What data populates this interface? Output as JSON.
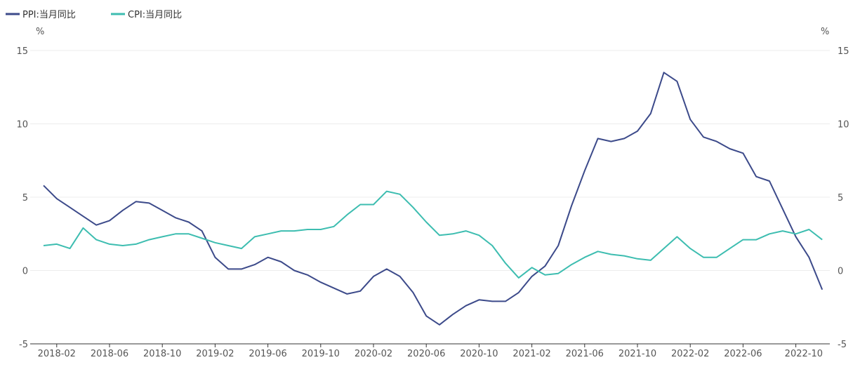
{
  "chart_data": {
    "type": "line",
    "unit_left": "%",
    "unit_right": "%",
    "ylim": [
      -5,
      15
    ],
    "yticks": [
      -5,
      0,
      5,
      10,
      15
    ],
    "x_labels": [
      "2018-02",
      "2018-06",
      "2018-10",
      "2019-02",
      "2019-06",
      "2019-10",
      "2020-02",
      "2020-06",
      "2020-10",
      "2021-02",
      "2021-06",
      "2021-10",
      "2022-02",
      "2022-06",
      "2022-10"
    ],
    "x_label_indices": [
      1,
      5,
      9,
      13,
      17,
      21,
      25,
      29,
      33,
      37,
      41,
      45,
      49,
      53,
      57
    ],
    "series": [
      {
        "name": "PPI:当月同比",
        "color": "#3c4a8a",
        "values": [
          5.8,
          4.9,
          4.3,
          3.7,
          3.1,
          3.4,
          4.1,
          4.7,
          4.6,
          4.1,
          3.6,
          3.3,
          2.7,
          0.9,
          0.1,
          0.1,
          0.4,
          0.9,
          0.6,
          0.0,
          -0.3,
          -0.8,
          -1.2,
          -1.6,
          -1.4,
          -0.4,
          0.1,
          -0.4,
          -1.5,
          -3.1,
          -3.7,
          -3.0,
          -2.4,
          -2.0,
          -2.1,
          -2.1,
          -1.5,
          -0.4,
          0.3,
          1.7,
          4.4,
          6.8,
          9.0,
          8.8,
          9.0,
          9.5,
          10.7,
          13.5,
          12.9,
          10.3,
          9.1,
          8.8,
          8.3,
          8.0,
          6.4,
          6.1,
          4.2,
          2.3,
          0.9,
          -1.3
        ]
      },
      {
        "name": "CPI:当月同比",
        "color": "#3dbdb0",
        "values": [
          1.7,
          1.8,
          1.5,
          2.9,
          2.1,
          1.8,
          1.7,
          1.8,
          2.1,
          2.3,
          2.5,
          2.5,
          2.2,
          1.9,
          1.7,
          1.5,
          2.3,
          2.5,
          2.7,
          2.7,
          2.8,
          2.8,
          3.0,
          3.8,
          4.5,
          4.5,
          5.4,
          5.2,
          4.3,
          3.3,
          2.4,
          2.5,
          2.7,
          2.4,
          1.7,
          0.5,
          -0.5,
          0.2,
          -0.3,
          -0.2,
          0.4,
          0.9,
          1.3,
          1.1,
          1.0,
          0.8,
          0.7,
          1.5,
          2.3,
          1.5,
          0.9,
          0.9,
          1.5,
          2.1,
          2.1,
          2.5,
          2.7,
          2.5,
          2.8,
          2.1
        ]
      }
    ]
  }
}
